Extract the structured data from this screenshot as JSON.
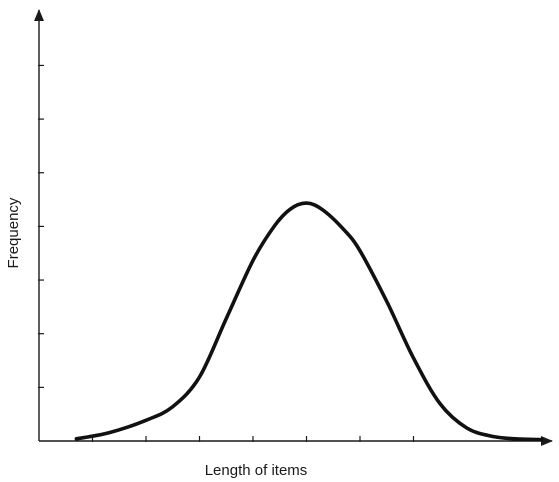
{
  "chart_data": {
    "type": "line",
    "title": "",
    "xlabel": "Length of items",
    "ylabel": "Frequency",
    "x_tick_labels": [],
    "y_tick_labels": [],
    "x_tick_count": 7,
    "y_tick_count": 7,
    "xlim": [
      0,
      10
    ],
    "ylim": [
      0,
      8
    ],
    "grid": false,
    "legend": "none",
    "colors": {
      "axis": "#1a1a1a",
      "curve": "#111111",
      "background": "#ffffff"
    },
    "series": [
      {
        "x": [
          0.7,
          1.3,
          2.0,
          2.5,
          3.0,
          3.5,
          4.0,
          4.4,
          4.7,
          5.0,
          5.3,
          5.7,
          6.0,
          6.5,
          7.0,
          7.5,
          8.0,
          8.5,
          9.0,
          9.4
        ],
        "y": [
          0.06,
          0.22,
          0.56,
          0.93,
          1.73,
          3.31,
          4.88,
          5.81,
          6.27,
          6.43,
          6.25,
          5.71,
          5.14,
          3.77,
          2.24,
          1.0,
          0.35,
          0.12,
          0.05,
          0.04
        ]
      }
    ]
  }
}
